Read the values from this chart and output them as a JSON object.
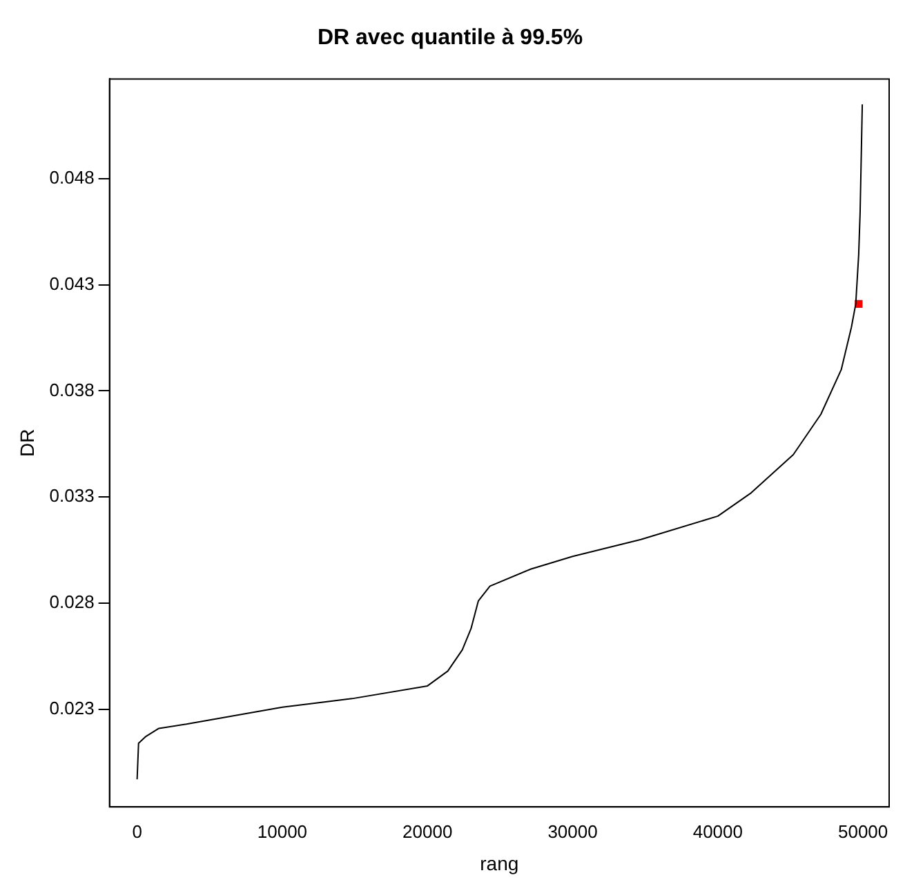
{
  "chart_data": {
    "type": "line",
    "title": "DR avec quantile à 99.5%",
    "xlabel": "rang",
    "ylabel": "DR",
    "xlim": [
      -1900,
      51800
    ],
    "ylim": [
      0.0184,
      0.0527
    ],
    "xticks": [
      0,
      10000,
      20000,
      30000,
      40000,
      50000
    ],
    "yticks": [
      0.023,
      0.028,
      0.033,
      0.038,
      0.043,
      0.048
    ],
    "grid": false,
    "legend": false,
    "series": [
      {
        "type": "line",
        "color": "#000000",
        "marker": "none",
        "x": [
          0,
          100,
          570,
          1500,
          3400,
          10000,
          14800,
          20000,
          21400,
          22400,
          23000,
          23500,
          24300,
          27100,
          30000,
          34700,
          40000,
          42300,
          45200,
          47100,
          48500,
          49200,
          49500,
          49700,
          49800,
          49950
        ],
        "values": [
          0.0197,
          0.0214,
          0.0217,
          0.0221,
          0.0223,
          0.0231,
          0.0235,
          0.0241,
          0.0248,
          0.0258,
          0.0268,
          0.0281,
          0.0288,
          0.0296,
          0.0302,
          0.031,
          0.0321,
          0.0332,
          0.035,
          0.0369,
          0.039,
          0.041,
          0.0421,
          0.0444,
          0.0464,
          0.0515
        ]
      },
      {
        "type": "scatter",
        "color": "#ff0000",
        "marker": "square",
        "x": [
          49700
        ],
        "values": [
          0.0421
        ]
      }
    ]
  }
}
